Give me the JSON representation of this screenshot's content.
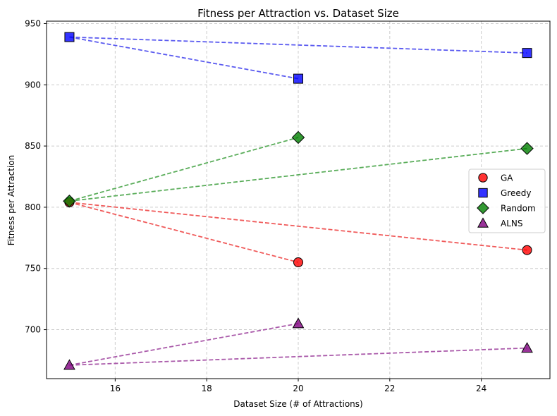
{
  "chart_data": {
    "type": "scatter",
    "title": "Fitness per Attraction vs. Dataset Size",
    "xlabel": "Dataset Size (# of Attractions)",
    "ylabel": "Fitness per Attraction",
    "xlim": [
      14.5,
      25.5
    ],
    "ylim": [
      660,
      952
    ],
    "xticks": [
      16,
      18,
      20,
      22,
      24
    ],
    "yticks": [
      700,
      750,
      800,
      850,
      900,
      950
    ],
    "grid": true,
    "legend_position": "center-right",
    "series": [
      {
        "name": "GA",
        "marker": "circle",
        "color": "#ff0000",
        "line_color": "#f05a5a",
        "points": [
          {
            "x": 15,
            "y": 804
          },
          {
            "x": 20,
            "y": 755
          },
          {
            "x": 25,
            "y": 765
          }
        ]
      },
      {
        "name": "Greedy",
        "marker": "square",
        "color": "#0000ff",
        "line_color": "#5a5af0",
        "points": [
          {
            "x": 15,
            "y": 939
          },
          {
            "x": 20,
            "y": 905
          },
          {
            "x": 25,
            "y": 926
          }
        ]
      },
      {
        "name": "Random",
        "marker": "diamond",
        "color": "#008000",
        "line_color": "#5aad5a",
        "points": [
          {
            "x": 15,
            "y": 805
          },
          {
            "x": 20,
            "y": 857
          },
          {
            "x": 25,
            "y": 848
          }
        ]
      },
      {
        "name": "ALNS",
        "marker": "triangle",
        "color": "#800080",
        "line_color": "#aa5aaa",
        "points": [
          {
            "x": 15,
            "y": 671
          },
          {
            "x": 20,
            "y": 705
          },
          {
            "x": 25,
            "y": 685
          }
        ]
      }
    ]
  }
}
